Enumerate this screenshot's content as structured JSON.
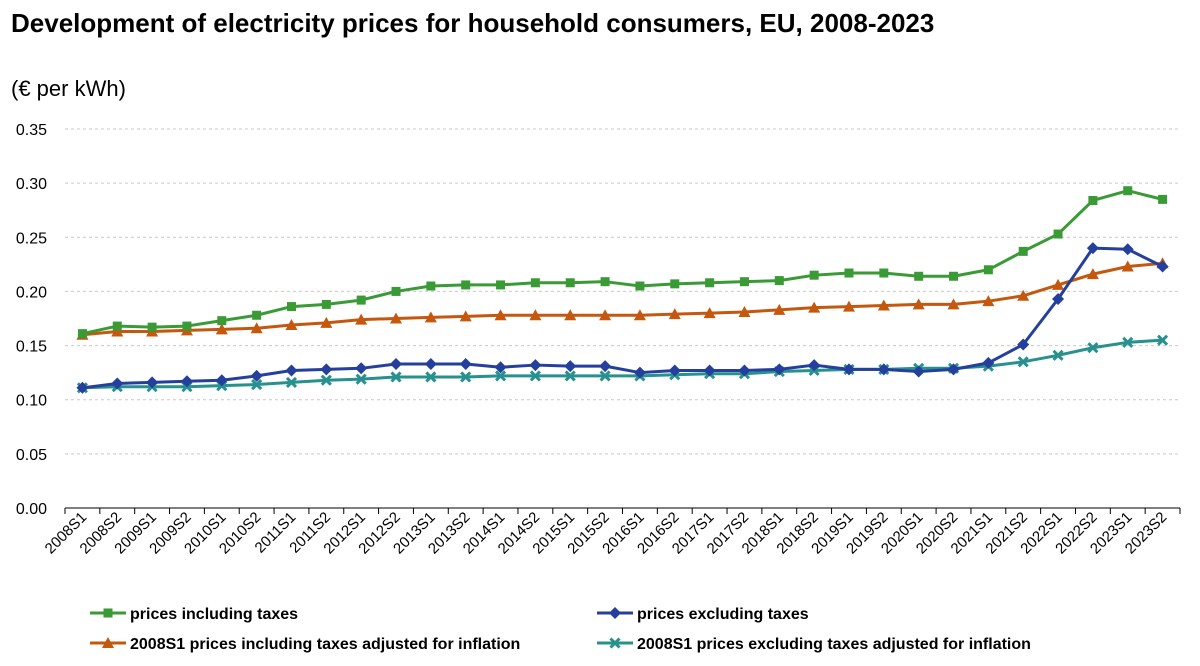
{
  "chart_data": {
    "type": "line",
    "title": "Development of electricity prices for household consumers, EU, 2008-2023",
    "subtitle": "(€ per kWh)",
    "xlabel": "",
    "ylabel": "",
    "ylim": [
      0,
      0.35
    ],
    "yticks": [
      "0.00",
      "0.05",
      "0.10",
      "0.15",
      "0.20",
      "0.25",
      "0.30",
      "0.35"
    ],
    "grid": true,
    "legend_position": "bottom",
    "categories": [
      "2008S1",
      "2008S2",
      "2009S1",
      "2009S2",
      "2010S1",
      "2010S2",
      "2011S1",
      "2011S2",
      "2012S1",
      "2012S2",
      "2013S1",
      "2013S2",
      "2014S1",
      "2014S2",
      "2015S1",
      "2015S2",
      "2016S1",
      "2016S2",
      "2017S1",
      "2017S2",
      "2018S1",
      "2018S2",
      "2019S1",
      "2019S2",
      "2020S1",
      "2020S2",
      "2021S1",
      "2021S2",
      "2022S1",
      "2022S2",
      "2023S1",
      "2023S2"
    ],
    "series": [
      {
        "name": "prices including taxes",
        "color": "#3a9a35",
        "marker": "square",
        "values": [
          0.161,
          0.168,
          0.167,
          0.168,
          0.173,
          0.178,
          0.186,
          0.188,
          0.192,
          0.2,
          0.205,
          0.206,
          0.206,
          0.208,
          0.208,
          0.209,
          0.205,
          0.207,
          0.208,
          0.209,
          0.21,
          0.215,
          0.217,
          0.217,
          0.214,
          0.214,
          0.22,
          0.237,
          0.253,
          0.284,
          0.293,
          0.285
        ]
      },
      {
        "name": "prices excluding taxes",
        "color": "#243f9c",
        "marker": "diamond",
        "values": [
          0.111,
          0.115,
          0.116,
          0.117,
          0.118,
          0.122,
          0.127,
          0.128,
          0.129,
          0.133,
          0.133,
          0.133,
          0.13,
          0.132,
          0.131,
          0.131,
          0.125,
          0.127,
          0.127,
          0.127,
          0.128,
          0.132,
          0.128,
          0.128,
          0.126,
          0.128,
          0.134,
          0.151,
          0.193,
          0.24,
          0.239,
          0.223
        ]
      },
      {
        "name": "2008S1 prices including taxes adjusted for inflation",
        "color": "#c4580f",
        "marker": "triangle",
        "values": [
          0.16,
          0.163,
          0.163,
          0.164,
          0.165,
          0.166,
          0.169,
          0.171,
          0.174,
          0.175,
          0.176,
          0.177,
          0.178,
          0.178,
          0.178,
          0.178,
          0.178,
          0.179,
          0.18,
          0.181,
          0.183,
          0.185,
          0.186,
          0.187,
          0.188,
          0.188,
          0.191,
          0.196,
          0.206,
          0.216,
          0.223,
          0.226
        ]
      },
      {
        "name": "2008S1 prices excluding taxes adjusted for inflation",
        "color": "#26918f",
        "marker": "x",
        "values": [
          0.111,
          0.112,
          0.112,
          0.112,
          0.113,
          0.114,
          0.116,
          0.118,
          0.119,
          0.121,
          0.121,
          0.121,
          0.122,
          0.122,
          0.122,
          0.122,
          0.122,
          0.123,
          0.124,
          0.124,
          0.126,
          0.127,
          0.128,
          0.128,
          0.129,
          0.129,
          0.131,
          0.135,
          0.141,
          0.148,
          0.153,
          0.155
        ]
      }
    ]
  }
}
